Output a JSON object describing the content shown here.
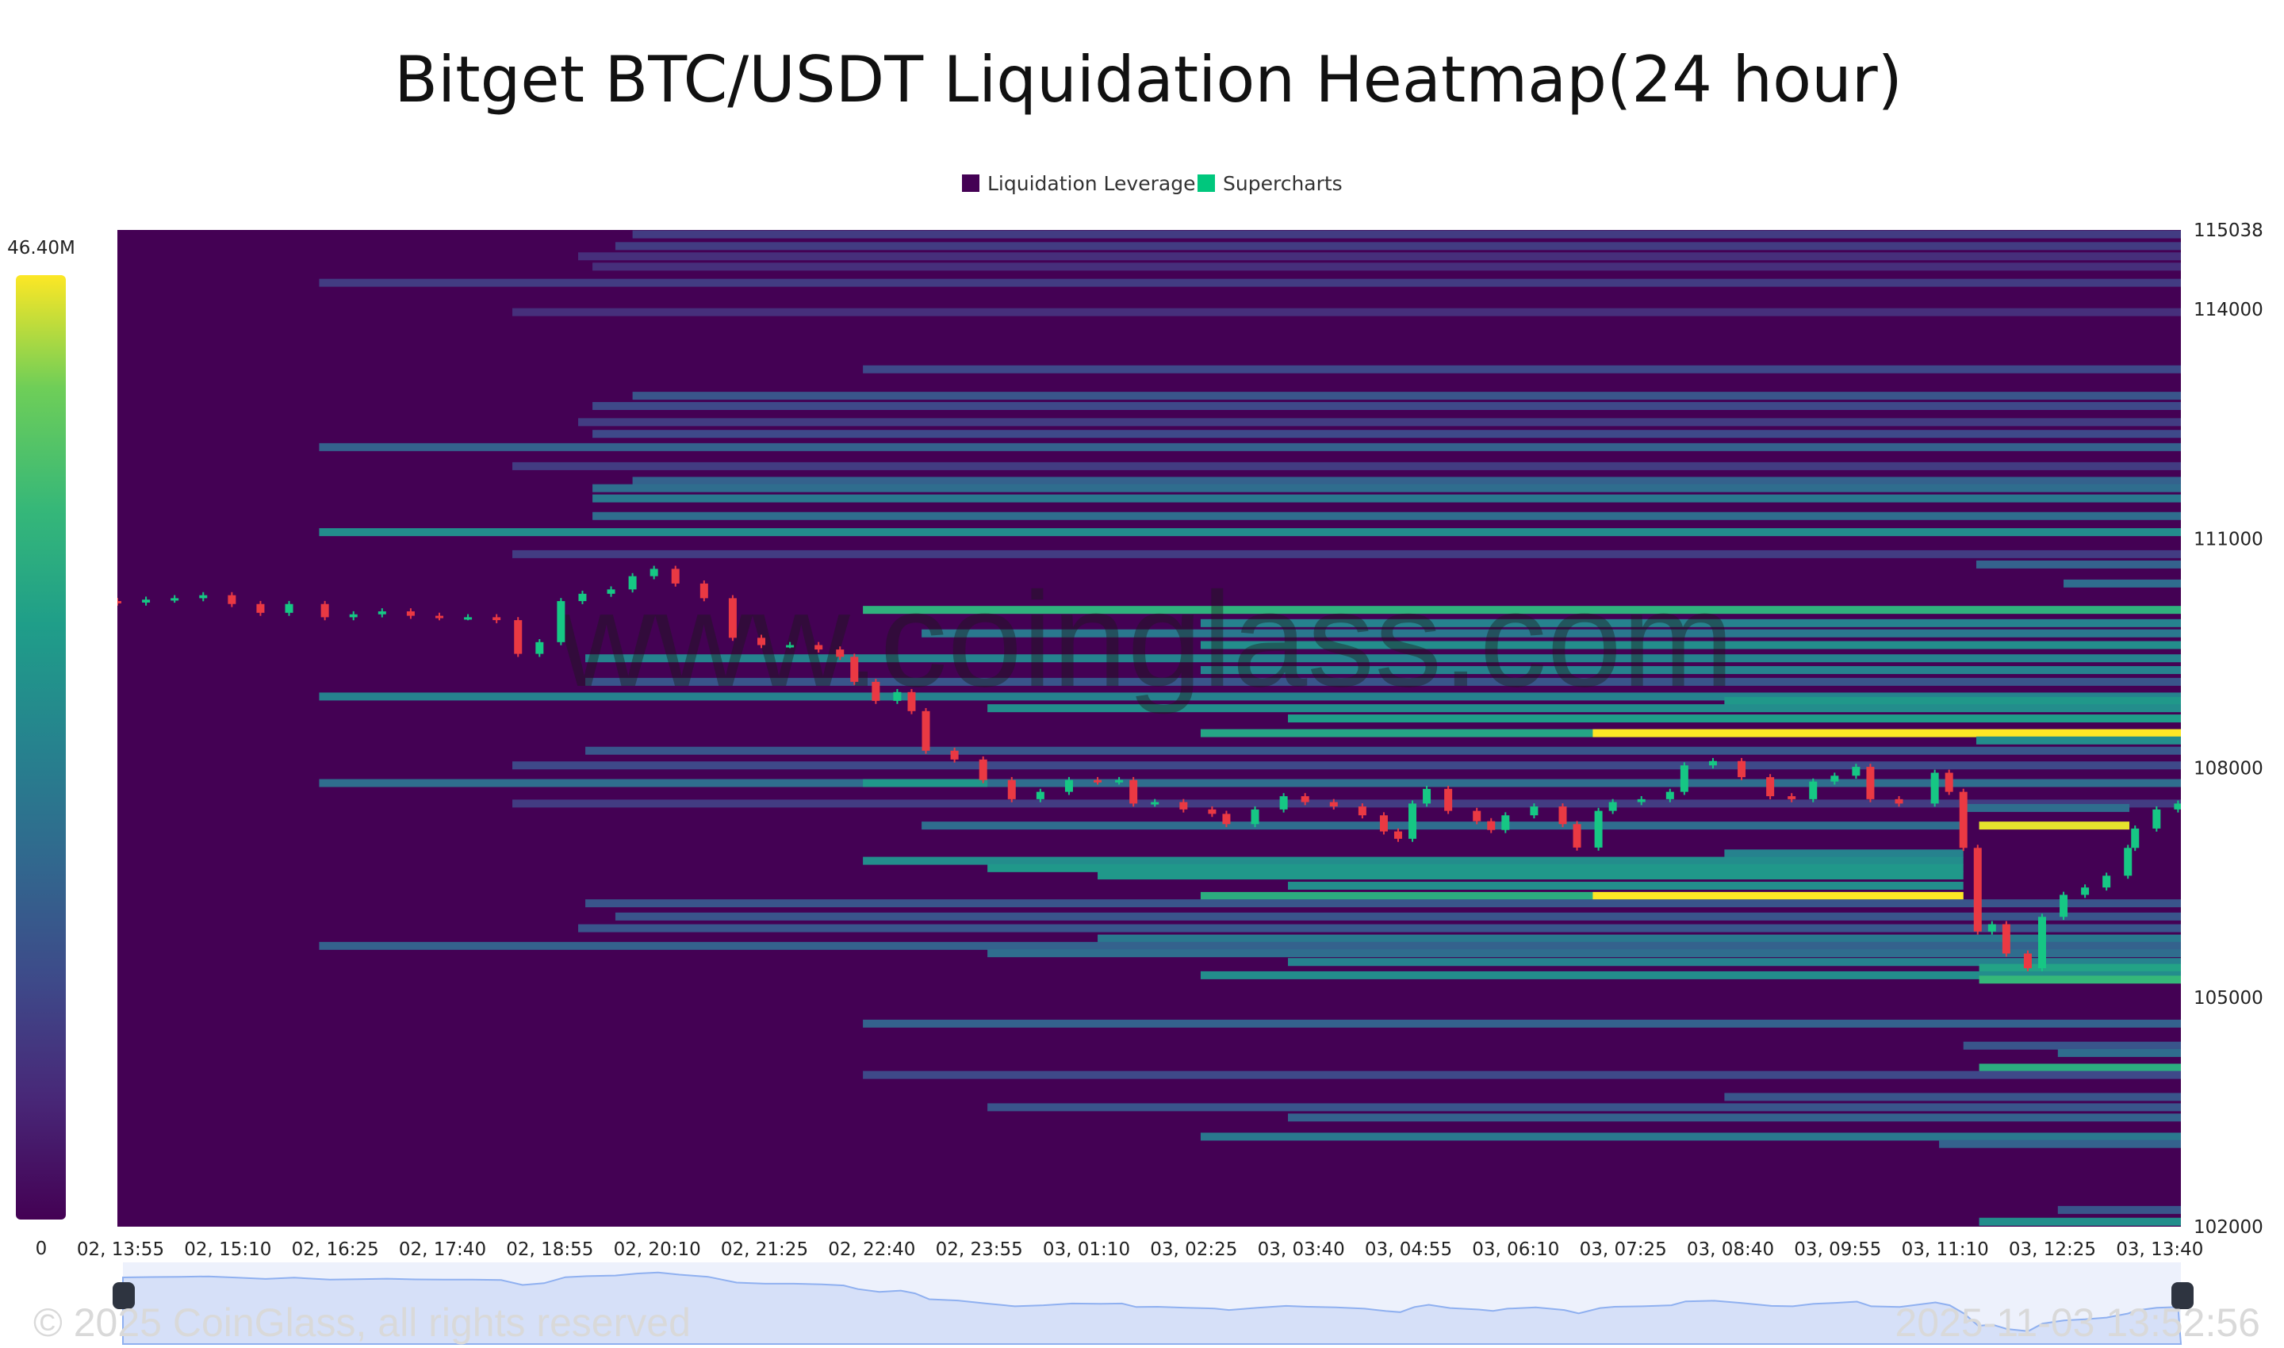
{
  "chart_data": {
    "type": "heatmap",
    "title": "Bitget BTC/USDT Liquidation Heatmap(24 hour)",
    "legend": [
      {
        "label": "Liquidation Leverage",
        "color": "#440154"
      },
      {
        "label": "Supercharts",
        "color": "#00c77d"
      }
    ],
    "legend_placement": "top-center",
    "colorbar": {
      "max_label": "46.40M",
      "min_label": "0",
      "colormap": "viridis"
    },
    "y_ticks": [
      "115038",
      "114000",
      "111000",
      "108000",
      "105000",
      "102000"
    ],
    "ylim": [
      102000,
      115038
    ],
    "x_ticks": [
      "02, 13:55",
      "02, 15:10",
      "02, 16:25",
      "02, 17:40",
      "02, 18:55",
      "02, 20:10",
      "02, 21:25",
      "02, 22:40",
      "02, 23:55",
      "03, 01:10",
      "03, 02:25",
      "03, 03:40",
      "03, 04:55",
      "03, 06:10",
      "03, 07:25",
      "03, 08:40",
      "03, 09:55",
      "03, 11:10",
      "03, 12:25",
      "03, 13:40"
    ],
    "bands_columns": [
      "price",
      "start",
      "end",
      "intensity"
    ],
    "bands": [
      [
        114980,
        "02, 19:55",
        null,
        0.2
      ],
      [
        114827,
        "02, 19:43",
        null,
        0.2
      ],
      [
        114693,
        "02, 19:17",
        null,
        0.15
      ],
      [
        114558,
        "02, 19:27",
        null,
        0.15
      ],
      [
        114347,
        "02, 16:16",
        null,
        0.2
      ],
      [
        113963,
        "02, 18:31",
        null,
        0.15
      ],
      [
        113215,
        "02, 22:36",
        null,
        0.25
      ],
      [
        112869,
        "02, 19:55",
        null,
        0.3
      ],
      [
        112735,
        "02, 19:27",
        null,
        0.25
      ],
      [
        112524,
        "02, 19:17",
        null,
        0.2
      ],
      [
        112370,
        "02, 19:27",
        null,
        0.25
      ],
      [
        112197,
        "02, 16:16",
        null,
        0.35
      ],
      [
        111948,
        "02, 18:31",
        null,
        0.2
      ],
      [
        111756,
        "02, 19:55",
        null,
        0.35
      ],
      [
        111660,
        "02, 19:27",
        null,
        0.4
      ],
      [
        111526,
        "02, 19:27",
        null,
        0.45
      ],
      [
        111296,
        "02, 19:27",
        null,
        0.4
      ],
      [
        111085,
        "02, 16:16",
        null,
        0.55
      ],
      [
        110797,
        "02, 18:31",
        null,
        0.2
      ],
      [
        110662,
        "03, 11:34",
        null,
        0.35
      ],
      [
        110413,
        "03, 12:35",
        null,
        0.4
      ],
      [
        110068,
        "02, 22:36",
        null,
        0.72
      ],
      [
        109895,
        "03, 02:32",
        null,
        0.5
      ],
      [
        109761,
        "02, 23:17",
        null,
        0.45
      ],
      [
        109608,
        "03, 02:32",
        null,
        0.55
      ],
      [
        109435,
        "02, 19:22",
        null,
        0.5
      ],
      [
        109281,
        "03, 02:32",
        null,
        0.5
      ],
      [
        109127,
        "02, 19:22",
        null,
        0.3
      ],
      [
        108935,
        "02, 16:16",
        null,
        0.5
      ],
      [
        108878,
        "03, 08:38",
        null,
        0.6
      ],
      [
        108782,
        "03, 00:03",
        null,
        0.55
      ],
      [
        108648,
        "03, 03:33",
        null,
        0.62
      ],
      [
        108456,
        "03, 02:32",
        null,
        0.66
      ],
      [
        108456,
        "03, 07:06",
        null,
        1.0
      ],
      [
        108360,
        "03, 11:34",
        null,
        0.55
      ],
      [
        108226,
        "02, 19:22",
        null,
        0.3
      ],
      [
        108034,
        "02, 18:31",
        null,
        0.25
      ],
      [
        107803,
        "02, 16:16",
        null,
        0.4
      ],
      [
        107803,
        "02, 22:36",
        "03, 00:03",
        0.6
      ],
      [
        107535,
        "02, 18:31",
        null,
        0.2
      ],
      [
        107477,
        "03, 11:25",
        "03, 13:21",
        0.4
      ],
      [
        107247,
        "03, 11:36",
        "03, 13:21",
        0.98
      ],
      [
        107247,
        "02, 23:17",
        "03, 11:25",
        0.4
      ],
      [
        106882,
        "03, 08:38",
        "03, 11:25",
        0.5
      ],
      [
        106786,
        "02, 22:36",
        "03, 11:25",
        0.55
      ],
      [
        106690,
        "03, 00:03",
        "03, 11:25",
        0.6
      ],
      [
        106594,
        "03, 01:20",
        "03, 11:25",
        0.6
      ],
      [
        106460,
        "03, 03:33",
        "03, 11:25",
        0.55
      ],
      [
        106326,
        "03, 02:32",
        "03, 11:25",
        0.7
      ],
      [
        106326,
        "03, 07:06",
        "03, 11:25",
        1.0
      ],
      [
        106230,
        "02, 19:22",
        null,
        0.3
      ],
      [
        106057,
        "02, 19:43",
        null,
        0.3
      ],
      [
        105904,
        "02, 19:17",
        null,
        0.3
      ],
      [
        105769,
        "03, 01:20",
        null,
        0.45
      ],
      [
        105673,
        "02, 16:16",
        null,
        0.35
      ],
      [
        105577,
        "03, 00:03",
        null,
        0.4
      ],
      [
        105462,
        "03, 03:33",
        null,
        0.5
      ],
      [
        105385,
        "03, 11:36",
        null,
        0.65
      ],
      [
        105289,
        "03, 02:32",
        null,
        0.55
      ],
      [
        105232,
        "03, 11:36",
        null,
        0.75
      ],
      [
        104656,
        "02, 22:36",
        null,
        0.35
      ],
      [
        104368,
        "03, 11:25",
        null,
        0.3
      ],
      [
        104272,
        "03, 12:31",
        null,
        0.4
      ],
      [
        104080,
        "03, 11:36",
        null,
        0.7
      ],
      [
        103985,
        "02, 22:36",
        null,
        0.25
      ],
      [
        103697,
        "03, 08:38",
        null,
        0.3
      ],
      [
        103562,
        "03, 00:03",
        null,
        0.3
      ],
      [
        103428,
        "03, 03:33",
        null,
        0.35
      ],
      [
        103178,
        "03, 02:32",
        null,
        0.45
      ],
      [
        103082,
        "03, 11:08",
        null,
        0.35
      ],
      [
        102219,
        "03, 12:31",
        null,
        0.3
      ],
      [
        102065,
        "03, 11:36",
        null,
        0.55
      ]
    ],
    "price_columns": [
      "time",
      "close"
    ],
    "price": [
      [
        "02, 13:55",
        110164
      ],
      [
        "02, 14:15",
        110202
      ],
      [
        "02, 14:35",
        110221
      ],
      [
        "02, 14:55",
        110260
      ],
      [
        "02, 15:15",
        110145
      ],
      [
        "02, 15:35",
        110030
      ],
      [
        "02, 15:55",
        110145
      ],
      [
        "02, 16:20",
        109972
      ],
      [
        "02, 16:40",
        110010
      ],
      [
        "02, 17:00",
        110049
      ],
      [
        "02, 17:20",
        109991
      ],
      [
        "02, 17:40",
        109972
      ],
      [
        "02, 18:00",
        109972
      ],
      [
        "02, 18:20",
        109934
      ],
      [
        "02, 18:35",
        109493
      ],
      [
        "02, 18:50",
        109646
      ],
      [
        "02, 19:05",
        110183
      ],
      [
        "02, 19:20",
        110279
      ],
      [
        "02, 19:40",
        110336
      ],
      [
        "02, 19:55",
        110509
      ],
      [
        "02, 20:10",
        110605
      ],
      [
        "02, 20:25",
        110413
      ],
      [
        "02, 20:45",
        110221
      ],
      [
        "02, 21:05",
        109703
      ],
      [
        "02, 21:25",
        109608
      ],
      [
        "02, 21:45",
        109608
      ],
      [
        "02, 22:05",
        109550
      ],
      [
        "02, 22:20",
        109454
      ],
      [
        "02, 22:30",
        109127
      ],
      [
        "02, 22:45",
        108878
      ],
      [
        "02, 23:00",
        108993
      ],
      [
        "02, 23:10",
        108744
      ],
      [
        "02, 23:20",
        108226
      ],
      [
        "02, 23:40",
        108111
      ],
      [
        "03, 00:00",
        107842
      ],
      [
        "03, 00:20",
        107592
      ],
      [
        "03, 00:40",
        107688
      ],
      [
        "03, 01:00",
        107842
      ],
      [
        "03, 01:20",
        107823
      ],
      [
        "03, 01:35",
        107842
      ],
      [
        "03, 01:45",
        107535
      ],
      [
        "03, 02:00",
        107554
      ],
      [
        "03, 02:20",
        107458
      ],
      [
        "03, 02:40",
        107400
      ],
      [
        "03, 02:50",
        107266
      ],
      [
        "03, 03:10",
        107458
      ],
      [
        "03, 03:30",
        107631
      ],
      [
        "03, 03:45",
        107554
      ],
      [
        "03, 04:05",
        107497
      ],
      [
        "03, 04:25",
        107381
      ],
      [
        "03, 04:40",
        107170
      ],
      [
        "03, 04:50",
        107074
      ],
      [
        "03, 05:00",
        107535
      ],
      [
        "03, 05:10",
        107727
      ],
      [
        "03, 05:25",
        107439
      ],
      [
        "03, 05:45",
        107304
      ],
      [
        "03, 05:55",
        107189
      ],
      [
        "03, 06:05",
        107381
      ],
      [
        "03, 06:25",
        107497
      ],
      [
        "03, 06:45",
        107266
      ],
      [
        "03, 06:55",
        106959
      ],
      [
        "03, 07:10",
        107439
      ],
      [
        "03, 07:20",
        107554
      ],
      [
        "03, 07:40",
        107592
      ],
      [
        "03, 08:00",
        107688
      ],
      [
        "03, 08:10",
        108034
      ],
      [
        "03, 08:30",
        108091
      ],
      [
        "03, 08:50",
        107880
      ],
      [
        "03, 09:10",
        107631
      ],
      [
        "03, 09:25",
        107592
      ],
      [
        "03, 09:40",
        107823
      ],
      [
        "03, 09:55",
        107899
      ],
      [
        "03, 10:10",
        108015
      ],
      [
        "03, 10:20",
        107592
      ],
      [
        "03, 10:40",
        107535
      ],
      [
        "03, 11:05",
        107938
      ],
      [
        "03, 11:15",
        107688
      ],
      [
        "03, 11:25",
        106955
      ],
      [
        "03, 11:35",
        105861
      ],
      [
        "03, 11:45",
        105957
      ],
      [
        "03, 11:55",
        105573
      ],
      [
        "03, 12:10",
        105381
      ],
      [
        "03, 12:20",
        106053
      ],
      [
        "03, 12:35",
        106341
      ],
      [
        "03, 12:50",
        106437
      ],
      [
        "03, 13:05",
        106591
      ],
      [
        "03, 13:20",
        106955
      ],
      [
        "03, 13:25",
        107208
      ],
      [
        "03, 13:40",
        107458
      ],
      [
        "03, 13:55",
        107535
      ]
    ],
    "colors": {
      "up": "#16c784",
      "down": "#ea3943",
      "background": "#440154"
    }
  },
  "watermark": "www.coinglass.com",
  "footer": {
    "copyright": "© 2025 CoinGlass, all rights reserved",
    "timestamp": "2025-11-03 13:52:56"
  }
}
